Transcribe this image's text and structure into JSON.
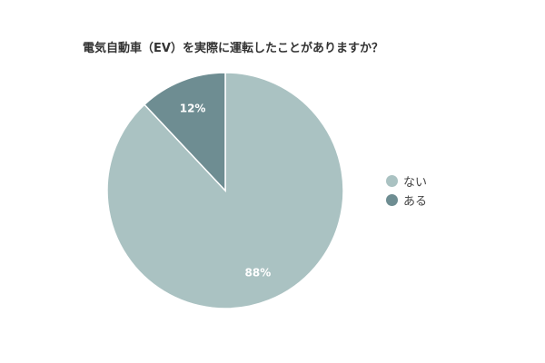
{
  "chart_data": {
    "type": "pie",
    "title": "電気自動車（EV）を実際に運転したことがありますか？",
    "categories": [
      "ない",
      "ある"
    ],
    "values": [
      88,
      12
    ],
    "value_labels": [
      "88%",
      "12%"
    ],
    "colors": [
      "#aac2c2",
      "#6e8d92"
    ],
    "legend_position": "right"
  }
}
